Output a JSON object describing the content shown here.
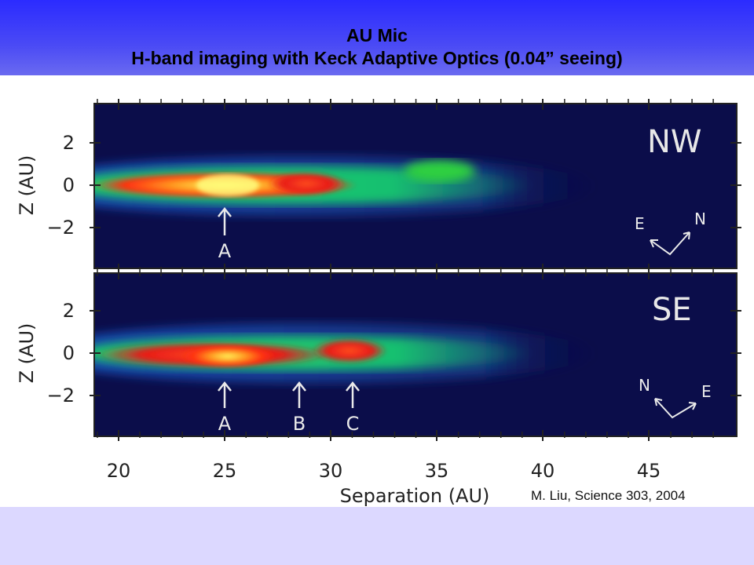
{
  "slide": {
    "title_line1": "AU Mic",
    "title_line2": "H-band imaging with Keck Adaptive Optics (0.04” seeing)",
    "citation": "M. Liu, Science 303, 2004",
    "header_color": "#3535f8",
    "footer_color": "#dcd8ff"
  },
  "figure": {
    "xlabel": "Separation (AU)",
    "ylabel": "Z (AU)",
    "x_ticks": [
      "20",
      "25",
      "30",
      "35",
      "40",
      "45"
    ],
    "y_ticks": [
      "2",
      "0",
      "−2"
    ],
    "panels": [
      {
        "label": "NW",
        "markers": [
          {
            "label": "A",
            "separation": 25
          }
        ],
        "compass": {
          "left": "E",
          "right": "N"
        }
      },
      {
        "label": "SE",
        "markers": [
          {
            "label": "A",
            "separation": 25
          },
          {
            "label": "B",
            "separation": 28.5
          },
          {
            "label": "C",
            "separation": 31
          }
        ],
        "compass": {
          "left": "N",
          "right": "E"
        }
      }
    ]
  }
}
